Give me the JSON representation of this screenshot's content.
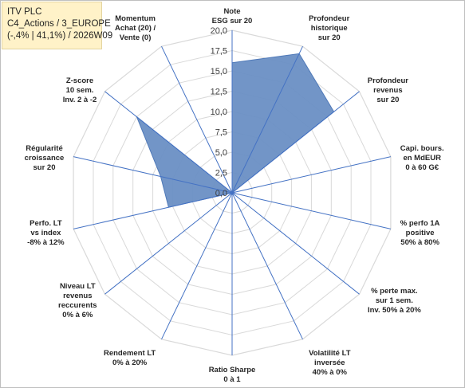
{
  "title_lines": [
    "ITV PLC",
    "C4_Actions / 3_EUROPE",
    "(-,4% | 41,1%) / 2026W09"
  ],
  "chart_data": {
    "type": "radar",
    "axis_labels": [
      [
        "Note",
        "ESG sur 20"
      ],
      [
        "Profondeur",
        "historique",
        "sur 20"
      ],
      [
        "Profondeur",
        "revenus",
        "sur 20"
      ],
      [
        "Capi. bours.",
        "en MdEUR",
        "0 à 60 G€"
      ],
      [
        "% perfo 1A",
        "positive",
        "50% à 80%"
      ],
      [
        "% perte max.",
        "sur 1 sem.",
        "Inv. 50% à 20%"
      ],
      [
        "Volatilité LT",
        "inversée",
        "40% à 0%"
      ],
      [
        "Ratio Sharpe",
        "0 à 1"
      ],
      [
        "Rendement LT",
        "0% à 20%"
      ],
      [
        "Niveau LT",
        "revenus",
        "reccurents",
        "0% à 6%"
      ],
      [
        "Perfo. LT",
        "vs index",
        "-8% à 12%"
      ],
      [
        "Régularité",
        "croissance",
        "sur 20"
      ],
      [
        "Z-score",
        "10 sem.",
        "Inv. 2 à -2"
      ],
      [
        "Momentum",
        "Achat (20) /",
        "Vente (0)"
      ]
    ],
    "values": [
      16,
      19,
      16,
      0,
      0,
      0,
      0,
      0,
      0,
      0,
      8,
      9,
      15,
      0
    ],
    "rmin": 0,
    "rmax": 20,
    "ticks": [
      "0,0",
      "2,5",
      "5,0",
      "7,5",
      "10,0",
      "12,5",
      "15,0",
      "17,5",
      "20,0"
    ],
    "fill_color": "#6a8fc4",
    "stroke_color": "#4f79b8",
    "axis_color": "#4472c4",
    "grid_color": "#d9d9d9"
  }
}
